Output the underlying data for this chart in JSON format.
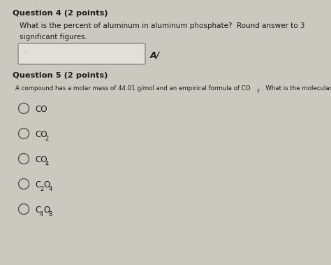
{
  "bg_color": "#cbc8c0",
  "panel_color": "#dedad2",
  "text_color": "#1a1a1a",
  "box_color": "#e2dfd8",
  "box_edge": "#888888",
  "q4_header": "Question 4 (2 points)",
  "q4_body_line1": "What is the percent of aluminum in aluminum phosphate?  Round answer to 3",
  "q4_body_line2": "significant figures.",
  "q5_header": "Question 5 (2 points)",
  "q5_body_pre": "A compound has a molar mass of 44.01 g/mol and an empirical formula of CO",
  "q5_body_sub": "2",
  "q5_body_post": ". What is the molecular formula?",
  "av_symbol": "A/",
  "figw": 4.74,
  "figh": 3.79,
  "dpi": 100
}
